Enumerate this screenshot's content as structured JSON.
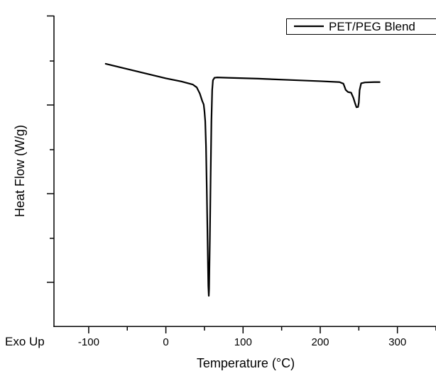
{
  "chart_data": {
    "type": "line",
    "xlabel": "Temperature (°C)",
    "ylabel": "Heat Flow (W/g)",
    "x_ticks": [
      -100,
      0,
      100,
      200,
      300
    ],
    "xlim": [
      -145,
      350
    ],
    "ylim": [
      0,
      100
    ],
    "y_tick_labels_shown": false,
    "grid": false,
    "legend": {
      "position": "top-right",
      "entries": [
        "PET/PEG Blend"
      ]
    },
    "annotations": {
      "exo_direction": "Exo Up"
    },
    "series": [
      {
        "name": "PET/PEG Blend",
        "color": "#000000",
        "x": [
          -78,
          -60,
          -40,
          -20,
          0,
          20,
          35,
          40,
          44,
          47,
          49,
          50,
          51,
          52,
          53,
          54,
          55,
          55.6,
          56,
          57,
          58,
          59,
          60,
          61,
          63,
          66,
          80,
          120,
          160,
          200,
          225,
          230,
          233,
          236,
          240,
          243,
          245,
          247,
          249,
          250,
          251,
          253,
          258,
          270,
          277
        ],
        "y": [
          84.5,
          83.4,
          82.2,
          81.0,
          79.8,
          78.8,
          77.8,
          76.9,
          74.9,
          72.6,
          71.4,
          69.2,
          66.0,
          58.0,
          44.0,
          28.0,
          13.0,
          9.8,
          12.0,
          28.0,
          48.0,
          66.0,
          76.0,
          79.2,
          80.0,
          80.1,
          80.0,
          79.7,
          79.3,
          78.9,
          78.6,
          78.1,
          76.1,
          75.4,
          75.2,
          73.5,
          71.9,
          70.5,
          70.6,
          72.0,
          76.0,
          78.2,
          78.5,
          78.6,
          78.6
        ]
      }
    ]
  }
}
